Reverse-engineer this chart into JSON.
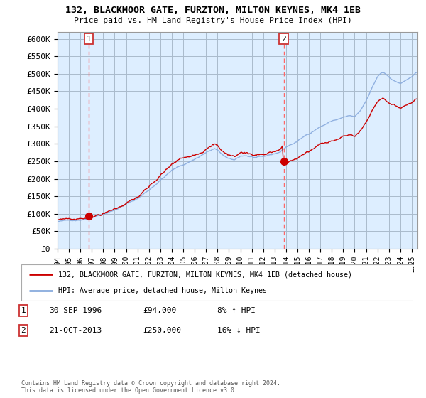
{
  "title": "132, BLACKMOOR GATE, FURZTON, MILTON KEYNES, MK4 1EB",
  "subtitle": "Price paid vs. HM Land Registry's House Price Index (HPI)",
  "ylim": [
    0,
    620000
  ],
  "yticks": [
    0,
    50000,
    100000,
    150000,
    200000,
    250000,
    300000,
    350000,
    400000,
    450000,
    500000,
    550000,
    600000
  ],
  "ytick_labels": [
    "£0",
    "£50K",
    "£100K",
    "£150K",
    "£200K",
    "£250K",
    "£300K",
    "£350K",
    "£400K",
    "£450K",
    "£500K",
    "£550K",
    "£600K"
  ],
  "xlim_start": 1994.0,
  "xlim_end": 2025.5,
  "sale1_x": 1996.75,
  "sale1_y": 94000,
  "sale2_x": 2013.79,
  "sale2_y": 250000,
  "legend_line1": "132, BLACKMOOR GATE, FURZTON, MILTON KEYNES, MK4 1EB (detached house)",
  "legend_line2": "HPI: Average price, detached house, Milton Keynes",
  "ann1_date": "30-SEP-1996",
  "ann1_price": "£94,000",
  "ann1_hpi": "8% ↑ HPI",
  "ann2_date": "21-OCT-2013",
  "ann2_price": "£250,000",
  "ann2_hpi": "16% ↓ HPI",
  "footer": "Contains HM Land Registry data © Crown copyright and database right 2024.\nThis data is licensed under the Open Government Licence v3.0.",
  "line_color_red": "#cc0000",
  "line_color_blue": "#88aadd",
  "background_color": "#ddeeff",
  "grid_color": "#aabbcc",
  "dashed_line_color": "#ff6666",
  "marker_color": "#cc0000"
}
